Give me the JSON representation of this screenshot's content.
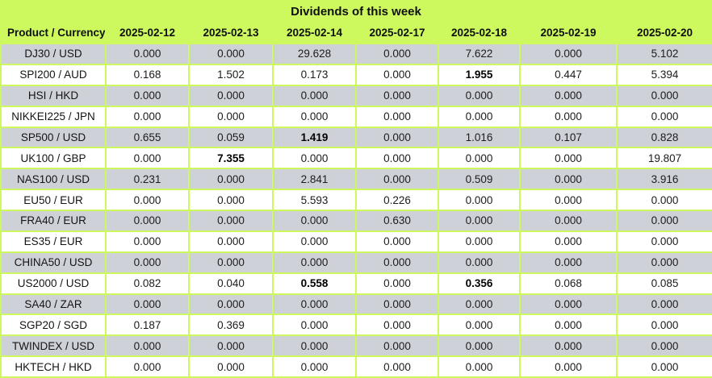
{
  "title": "Dividends of this week",
  "colors": {
    "header_green": "#cdf95e",
    "row_gray": "#cfd1d9",
    "row_white": "#ffffff",
    "text": "#1c1c1c",
    "bold_text": "#000000"
  },
  "chart_data": {
    "type": "table",
    "title": "Dividends of this week",
    "columns": [
      "Product / Currency",
      "2025-02-12",
      "2025-02-13",
      "2025-02-14",
      "2025-02-17",
      "2025-02-18",
      "2025-02-19",
      "2025-02-20"
    ],
    "rows": [
      {
        "product": "DJ30 / USD",
        "values": [
          "0.000",
          "0.000",
          "29.628",
          "0.000",
          "7.622",
          "0.000",
          "5.102"
        ],
        "bold": []
      },
      {
        "product": "SPI200 / AUD",
        "values": [
          "0.168",
          "1.502",
          "0.173",
          "0.000",
          "1.955",
          "0.447",
          "5.394"
        ],
        "bold": [
          4
        ]
      },
      {
        "product": "HSI / HKD",
        "values": [
          "0.000",
          "0.000",
          "0.000",
          "0.000",
          "0.000",
          "0.000",
          "0.000"
        ],
        "bold": []
      },
      {
        "product": "NIKKEI225 / JPN",
        "values": [
          "0.000",
          "0.000",
          "0.000",
          "0.000",
          "0.000",
          "0.000",
          "0.000"
        ],
        "bold": []
      },
      {
        "product": "SP500 / USD",
        "values": [
          "0.655",
          "0.059",
          "1.419",
          "0.000",
          "1.016",
          "0.107",
          "0.828"
        ],
        "bold": [
          2
        ]
      },
      {
        "product": "UK100 / GBP",
        "values": [
          "0.000",
          "7.355",
          "0.000",
          "0.000",
          "0.000",
          "0.000",
          "19.807"
        ],
        "bold": [
          1
        ]
      },
      {
        "product": "NAS100 / USD",
        "values": [
          "0.231",
          "0.000",
          "2.841",
          "0.000",
          "0.509",
          "0.000",
          "3.916"
        ],
        "bold": []
      },
      {
        "product": "EU50 / EUR",
        "values": [
          "0.000",
          "0.000",
          "5.593",
          "0.226",
          "0.000",
          "0.000",
          "0.000"
        ],
        "bold": []
      },
      {
        "product": "FRA40 / EUR",
        "values": [
          "0.000",
          "0.000",
          "0.000",
          "0.630",
          "0.000",
          "0.000",
          "0.000"
        ],
        "bold": []
      },
      {
        "product": "ES35 / EUR",
        "values": [
          "0.000",
          "0.000",
          "0.000",
          "0.000",
          "0.000",
          "0.000",
          "0.000"
        ],
        "bold": []
      },
      {
        "product": "CHINA50 / USD",
        "values": [
          "0.000",
          "0.000",
          "0.000",
          "0.000",
          "0.000",
          "0.000",
          "0.000"
        ],
        "bold": []
      },
      {
        "product": "US2000 / USD",
        "values": [
          "0.082",
          "0.040",
          "0.558",
          "0.000",
          "0.356",
          "0.068",
          "0.085"
        ],
        "bold": [
          2,
          4
        ]
      },
      {
        "product": "SA40 / ZAR",
        "values": [
          "0.000",
          "0.000",
          "0.000",
          "0.000",
          "0.000",
          "0.000",
          "0.000"
        ],
        "bold": []
      },
      {
        "product": "SGP20 / SGD",
        "values": [
          "0.187",
          "0.369",
          "0.000",
          "0.000",
          "0.000",
          "0.000",
          "0.000"
        ],
        "bold": []
      },
      {
        "product": "TWINDEX / USD",
        "values": [
          "0.000",
          "0.000",
          "0.000",
          "0.000",
          "0.000",
          "0.000",
          "0.000"
        ],
        "bold": []
      },
      {
        "product": "HKTECH / HKD",
        "values": [
          "0.000",
          "0.000",
          "0.000",
          "0.000",
          "0.000",
          "0.000",
          "0.000"
        ],
        "bold": []
      }
    ]
  }
}
